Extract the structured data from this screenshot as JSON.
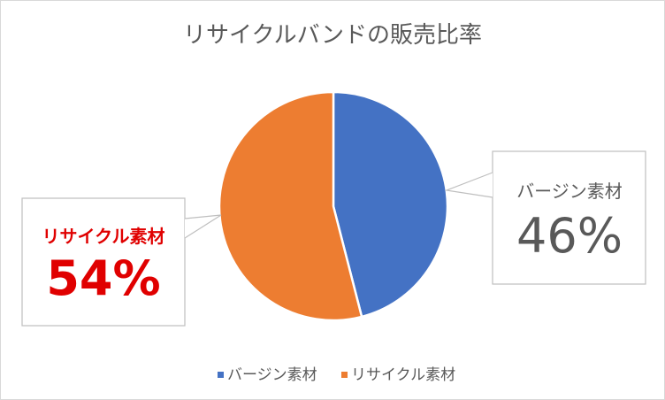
{
  "chart_data": {
    "type": "pie",
    "title": "リサイクルバンドの販売比率",
    "series": [
      {
        "name": "バージン素材",
        "value": 46,
        "label": "46%",
        "color": "#4472C4"
      },
      {
        "name": "リサイクル素材",
        "value": 54,
        "label": "54%",
        "color": "#ED7D31"
      }
    ],
    "start_angle": "12 o'clock",
    "direction": "clockwise",
    "legend_position": "bottom",
    "callout_text_colors": [
      "#595959",
      "#E00000"
    ]
  }
}
